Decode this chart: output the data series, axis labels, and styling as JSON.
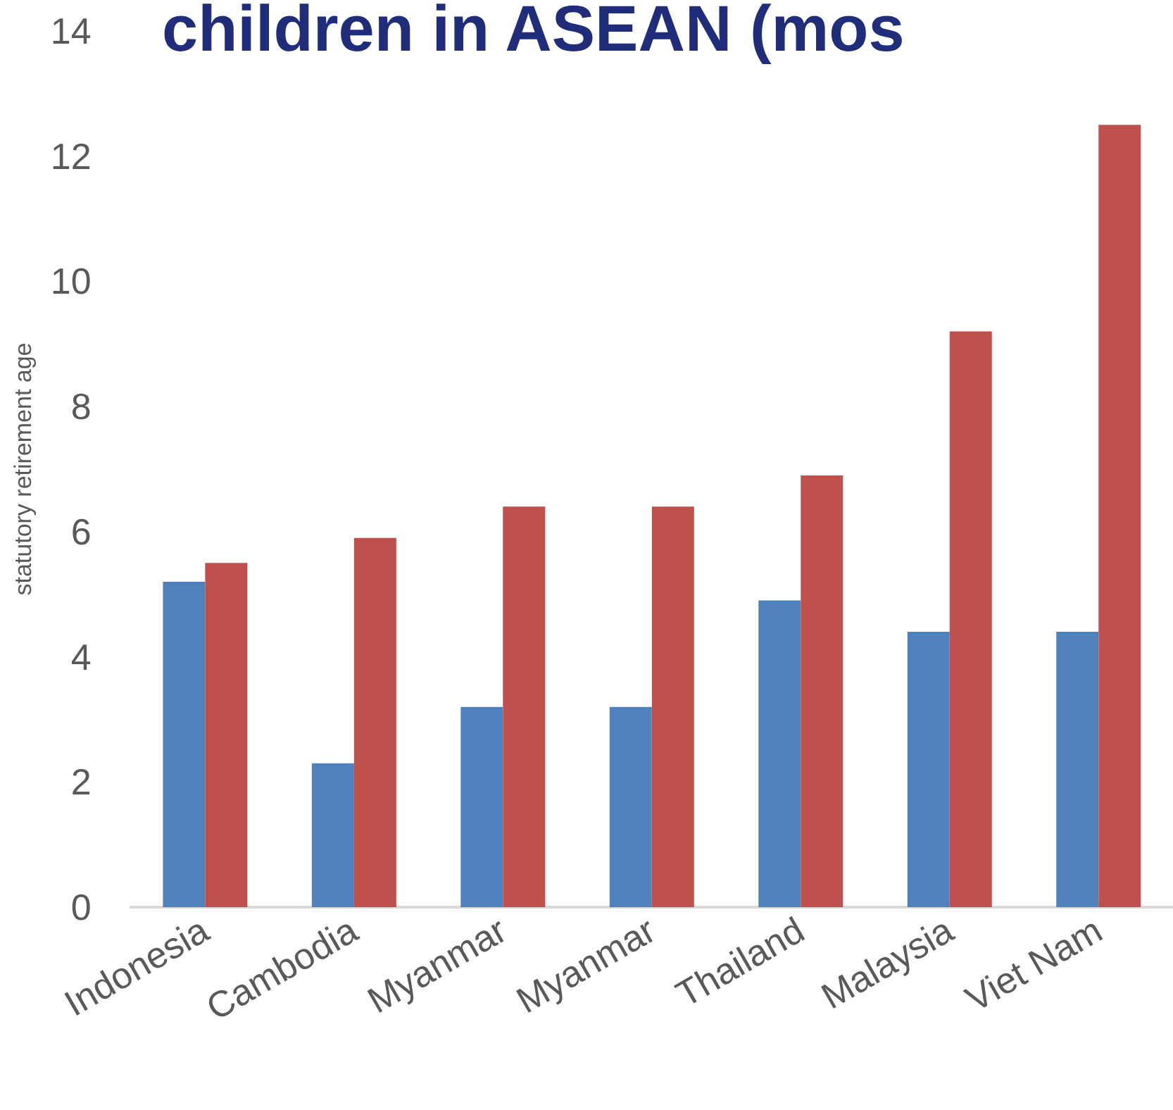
{
  "chart_data": {
    "type": "bar",
    "title": "children in ASEAN (mos",
    "ylabel": "statutory retirement age",
    "categories": [
      "Indonesia",
      "Cambodia",
      "Myanmar",
      "Myanmar",
      "Thailand",
      "Malaysia",
      "Viet Nam"
    ],
    "series": [
      {
        "color": "#4f81bd",
        "values": [
          5.2,
          2.3,
          3.2,
          3.2,
          4.9,
          4.4,
          4.4
        ]
      },
      {
        "color": "#c0504d",
        "values": [
          5.5,
          5.9,
          6.4,
          6.4,
          6.9,
          9.2,
          12.5
        ]
      }
    ],
    "ylim": [
      0,
      14
    ],
    "yticks": [
      0,
      2,
      4,
      6,
      8,
      10,
      12,
      14
    ],
    "grid": false
  }
}
